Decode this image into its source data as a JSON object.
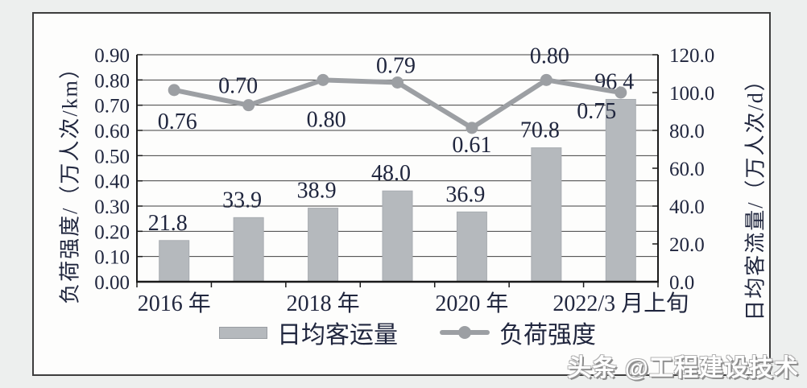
{
  "watermark": {
    "text": "头条 @工程建设技术"
  },
  "colors": {
    "bar": "#b5b9bd",
    "bar_edge": "#a8acb1",
    "line": "#9c9fa3",
    "grid": "#404040",
    "axis": "#1a1a1a",
    "text": "#20263e",
    "panel": "#fdfdfc",
    "page_background": "#edefee"
  },
  "chart_data": {
    "type": "bar+line combo",
    "n_slots": 7,
    "x_axis": {
      "labels": [
        {
          "text": "2016 年",
          "slot": 0
        },
        {
          "text": "2018 年",
          "slot": 2
        },
        {
          "text": "2020 年",
          "slot": 4
        },
        {
          "text": "2022/3 月上旬",
          "slot": 6
        }
      ]
    },
    "left_axis": {
      "title": "负荷强度/（万人次/km）",
      "min": 0.0,
      "max": 0.9,
      "step": 0.1,
      "tick_labels": [
        "0.00",
        "0.10",
        "0.20",
        "0.30",
        "0.40",
        "0.50",
        "0.60",
        "0.70",
        "0.80",
        "0.90"
      ]
    },
    "right_axis": {
      "title": "日均客流量/（万人次/d）",
      "min": 0.0,
      "max": 120.0,
      "step": 20.0,
      "tick_labels": [
        "0.0",
        "20.0",
        "40.0",
        "60.0",
        "80.0",
        "100.0",
        "120.0"
      ]
    },
    "series": [
      {
        "name": "日均客运量",
        "type": "bar",
        "axis": "right",
        "values": [
          21.8,
          33.9,
          38.9,
          48.0,
          36.9,
          70.8,
          96.4
        ],
        "labels": [
          "21.8",
          "33.9",
          "38.9",
          "48.0",
          "36.9",
          "70.8",
          "96.4"
        ]
      },
      {
        "name": "负荷强度",
        "type": "line",
        "axis": "left",
        "values": [
          0.76,
          0.7,
          0.8,
          0.79,
          0.61,
          0.8,
          0.75
        ],
        "labels": [
          "0.76",
          "0.70",
          "0.80",
          "0.79",
          "0.61",
          "0.80",
          "0.75"
        ]
      }
    ],
    "legend": [
      {
        "label": "日均客运量",
        "marker": "bar"
      },
      {
        "label": "负荷强度",
        "marker": "line"
      }
    ],
    "grid": "horizontal",
    "legend_position": "bottom-center"
  }
}
